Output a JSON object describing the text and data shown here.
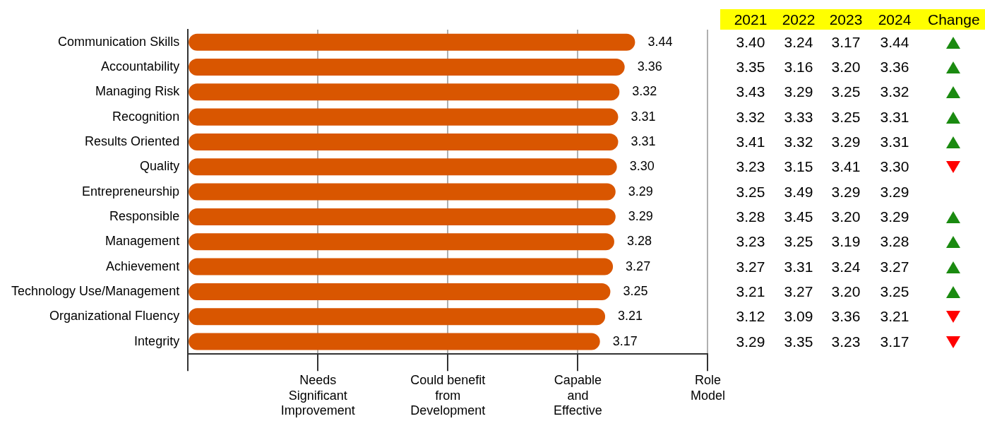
{
  "chart_data": [
    {
      "type": "bar",
      "orientation": "horizontal",
      "categories": [
        "Communication Skills",
        "Accountability",
        "Managing Risk",
        "Recognition",
        "Results Oriented",
        "Quality",
        "Entrepreneurship",
        "Responsible",
        "Management",
        "Achievement",
        "Technology Use/Management",
        "Organizational Fluency",
        "Integrity"
      ],
      "values": [
        3.44,
        3.36,
        3.32,
        3.31,
        3.31,
        3.3,
        3.29,
        3.29,
        3.28,
        3.27,
        3.25,
        3.21,
        3.17
      ],
      "color": "#d95600",
      "value_labels": [
        "3.44",
        "3.36",
        "3.32",
        "3.31",
        "3.31",
        "3.30",
        "3.29",
        "3.29",
        "3.28",
        "3.27",
        "3.25",
        "3.21",
        "3.17"
      ],
      "xlim": [
        0,
        4
      ],
      "ref_lines": [
        {
          "axis": "x",
          "value": 1,
          "label": "Needs\nSignificant\nImprovement",
          "color": "#b0b0b0"
        },
        {
          "axis": "x",
          "value": 2,
          "label": "Could benefit\nfrom\nDevelopment",
          "color": "#b0b0b0"
        },
        {
          "axis": "x",
          "value": 3,
          "label": "Capable\nand\nEffective",
          "color": "#b0b0b0"
        },
        {
          "axis": "x",
          "value": 4,
          "label": "Role\nModel",
          "color": "#b0b0b0"
        }
      ],
      "legend": false
    },
    {
      "type": "heatmap",
      "categories": [
        "2021",
        "2022",
        "2023",
        "2024",
        "Change"
      ],
      "y_categories": [
        null,
        null,
        null,
        null,
        null,
        null,
        null,
        null,
        null,
        null,
        null,
        null,
        null
      ],
      "cells": [
        [
          3.4,
          3.24,
          3.17,
          3.44,
          null
        ],
        [
          3.35,
          3.16,
          3.2,
          3.36,
          null
        ],
        [
          3.43,
          3.29,
          3.25,
          3.32,
          null
        ],
        [
          3.32,
          3.33,
          3.25,
          3.31,
          null
        ],
        [
          3.41,
          3.32,
          3.29,
          3.31,
          null
        ],
        [
          3.23,
          3.15,
          3.41,
          3.3,
          null
        ],
        [
          3.25,
          3.49,
          3.29,
          3.29,
          null
        ],
        [
          3.28,
          3.45,
          3.2,
          3.29,
          null
        ],
        [
          3.23,
          3.25,
          3.19,
          3.28,
          null
        ],
        [
          3.27,
          3.31,
          3.24,
          3.27,
          null
        ],
        [
          3.21,
          3.27,
          3.2,
          3.25,
          null
        ],
        [
          3.12,
          3.09,
          3.36,
          3.21,
          null
        ],
        [
          3.29,
          3.35,
          3.23,
          3.17,
          null
        ]
      ],
      "cell_labels": [
        [
          "3.40",
          "3.24",
          "3.17",
          "3.44",
          null
        ],
        [
          "3.35",
          "3.16",
          "3.20",
          "3.36",
          null
        ],
        [
          "3.43",
          "3.29",
          "3.25",
          "3.32",
          null
        ],
        [
          "3.32",
          "3.33",
          "3.25",
          "3.31",
          null
        ],
        [
          "3.41",
          "3.32",
          "3.29",
          "3.31",
          null
        ],
        [
          "3.23",
          "3.15",
          "3.41",
          "3.30",
          null
        ],
        [
          "3.25",
          "3.49",
          "3.29",
          "3.29",
          null
        ],
        [
          "3.28",
          "3.45",
          "3.20",
          "3.29",
          null
        ],
        [
          "3.23",
          "3.25",
          "3.19",
          "3.28",
          null
        ],
        [
          "3.27",
          "3.31",
          "3.24",
          "3.27",
          null
        ],
        [
          "3.21",
          "3.27",
          "3.20",
          "3.25",
          null
        ],
        [
          "3.12",
          "3.09",
          "3.36",
          "3.21",
          null
        ],
        [
          "3.29",
          "3.35",
          "3.23",
          "3.17",
          null
        ]
      ]
    }
  ]
}
